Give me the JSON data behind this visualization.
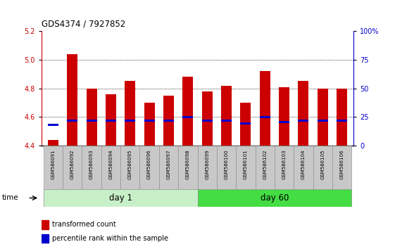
{
  "title": "GDS4374 / 7927852",
  "samples": [
    "GSM586091",
    "GSM586092",
    "GSM586093",
    "GSM586094",
    "GSM586095",
    "GSM586096",
    "GSM586097",
    "GSM586098",
    "GSM586099",
    "GSM586100",
    "GSM586101",
    "GSM586102",
    "GSM586103",
    "GSM586104",
    "GSM586105",
    "GSM586106"
  ],
  "red_values": [
    4.44,
    5.04,
    4.8,
    4.76,
    4.85,
    4.7,
    4.75,
    4.88,
    4.78,
    4.82,
    4.7,
    4.92,
    4.81,
    4.85,
    4.8,
    4.8
  ],
  "blue_values": [
    4.545,
    4.575,
    4.575,
    4.575,
    4.575,
    4.575,
    4.575,
    4.6,
    4.575,
    4.575,
    4.555,
    4.6,
    4.565,
    4.575,
    4.575,
    4.575
  ],
  "ylim_left": [
    4.4,
    5.2
  ],
  "yticks_left": [
    4.4,
    4.6,
    4.8,
    5.0,
    5.2
  ],
  "ylim_right": [
    0,
    100
  ],
  "yticks_right": [
    0,
    25,
    50,
    75,
    100
  ],
  "ytick_labels_right": [
    "0",
    "25",
    "50",
    "75",
    "100%"
  ],
  "bar_width": 0.55,
  "baseline": 4.4,
  "red_color": "#cc0000",
  "blue_color": "#0000cc",
  "group1_label": "day 1",
  "group2_label": "day 60",
  "group1_indices": [
    0,
    1,
    2,
    3,
    4,
    5,
    6,
    7
  ],
  "group2_indices": [
    8,
    9,
    10,
    11,
    12,
    13,
    14,
    15
  ],
  "group1_color": "#c8f0c8",
  "group2_color": "#44dd44",
  "tick_bg_color": "#c8c8c8",
  "legend_red": "transformed count",
  "legend_blue": "percentile rank within the sample",
  "time_label": "time"
}
